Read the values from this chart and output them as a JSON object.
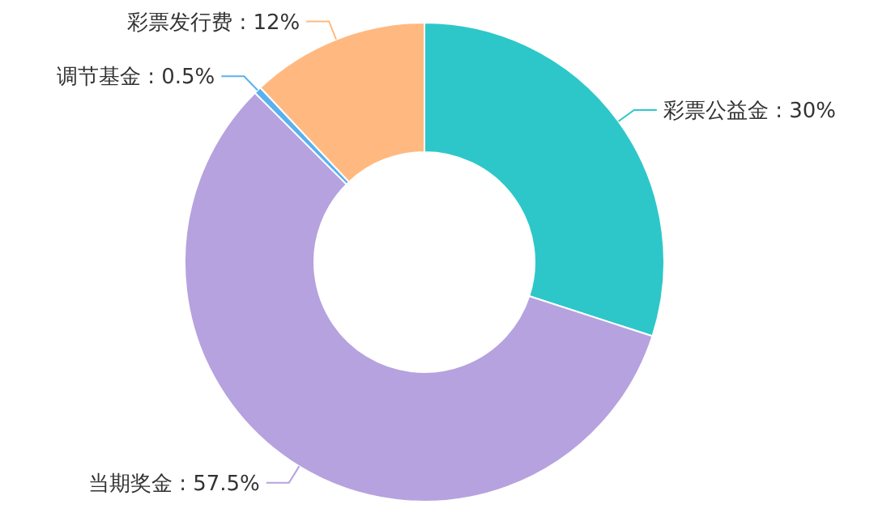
{
  "chart_data": {
    "type": "donut",
    "categories": [
      "彩票公益金",
      "当期奖金",
      "调节基金",
      "彩票发行费"
    ],
    "values": [
      30,
      57.5,
      0.5,
      12
    ],
    "value_labels": [
      "30%",
      "57.5%",
      "0.5%",
      "12%"
    ],
    "colors": [
      "#2ec7c9",
      "#b6a2de",
      "#5ab1ef",
      "#ffb980"
    ]
  }
}
